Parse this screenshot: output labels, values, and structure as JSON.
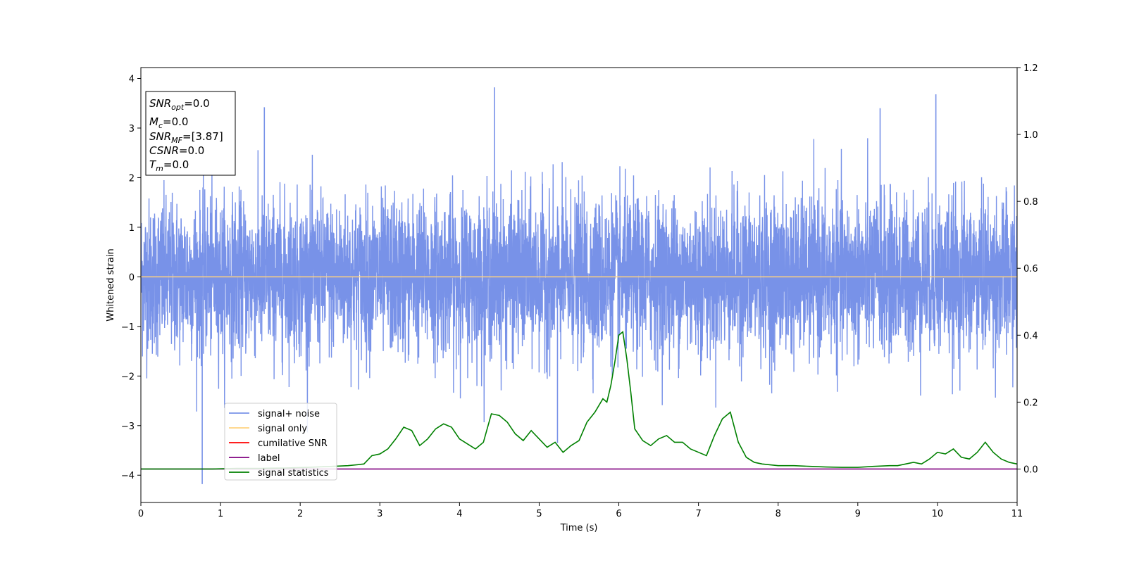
{
  "chart_data": {
    "type": "line",
    "title": "",
    "xlabel": "Time (s)",
    "ylabel": "Whitened strain",
    "xlim": [
      0,
      11
    ],
    "ylim_left": [
      -4.55,
      4.22
    ],
    "ylim_right": [
      -0.1,
      1.2
    ],
    "x_ticks": [
      0,
      1,
      2,
      3,
      4,
      5,
      6,
      7,
      8,
      9,
      10,
      11
    ],
    "y_left_ticks": [
      -4,
      -3,
      -2,
      -1,
      0,
      1,
      2,
      3,
      4
    ],
    "y_right_ticks": [
      0.0,
      0.2,
      0.4,
      0.6,
      0.8,
      1.0,
      1.2
    ],
    "grid": false,
    "legend_position": "lower-left",
    "annotation": {
      "snr_opt": {
        "base": "SNR",
        "sub": "opt",
        "value": "=0.0"
      },
      "mc": {
        "base": "M",
        "sub": "c",
        "value": "=0.0"
      },
      "snr_mf": {
        "base": "SNR",
        "sub": "MF",
        "value": "=[3.87]"
      },
      "csnr": {
        "base": "CSNR",
        "sub": "",
        "value": "=0.0"
      },
      "tm": {
        "base": "T",
        "sub": "m",
        "value": "=0.0"
      }
    },
    "series": [
      {
        "name": "signal+ noise",
        "color": "#7892e8",
        "axis": "left",
        "kind": "noise",
        "std": 0.78,
        "approx_peaks": [
          [
            0.77,
            -4.18
          ],
          [
            4.44,
            3.82
          ],
          [
            9.98,
            3.68
          ],
          [
            5.23,
            -3.35
          ],
          [
            1.55,
            3.42
          ],
          [
            9.28,
            3.4
          ]
        ]
      },
      {
        "name": "signal only",
        "color": "#ffd280",
        "axis": "left",
        "x": [
          0,
          11
        ],
        "y": [
          0,
          0
        ]
      },
      {
        "name": "cumilative SNR",
        "color": "#ff0000",
        "axis": "right",
        "x": [],
        "y": []
      },
      {
        "name": "label",
        "color": "#800080",
        "axis": "right",
        "x": [
          0,
          11
        ],
        "y": [
          0,
          0
        ]
      },
      {
        "name": "signal statistics",
        "color": "#008000",
        "axis": "right",
        "x": [
          0,
          0.3,
          0.6,
          0.9,
          1.2,
          1.5,
          1.8,
          2.1,
          2.4,
          2.6,
          2.8,
          2.9,
          3.0,
          3.1,
          3.2,
          3.3,
          3.4,
          3.5,
          3.6,
          3.7,
          3.8,
          3.9,
          4.0,
          4.1,
          4.2,
          4.3,
          4.4,
          4.5,
          4.6,
          4.7,
          4.8,
          4.9,
          5.0,
          5.1,
          5.2,
          5.3,
          5.4,
          5.5,
          5.6,
          5.7,
          5.8,
          5.85,
          5.9,
          5.95,
          6.0,
          6.05,
          6.1,
          6.15,
          6.2,
          6.3,
          6.4,
          6.5,
          6.6,
          6.7,
          6.8,
          6.9,
          7.0,
          7.1,
          7.2,
          7.3,
          7.4,
          7.5,
          7.6,
          7.7,
          7.8,
          8.0,
          8.2,
          8.4,
          8.6,
          8.8,
          9.0,
          9.2,
          9.4,
          9.5,
          9.6,
          9.7,
          9.8,
          9.9,
          10.0,
          10.1,
          10.2,
          10.3,
          10.4,
          10.5,
          10.6,
          10.7,
          10.8,
          10.9,
          11.0
        ],
        "y": [
          0.0,
          0.0,
          0.0,
          0.0,
          0.002,
          0.002,
          0.003,
          0.005,
          0.008,
          0.01,
          0.015,
          0.04,
          0.045,
          0.06,
          0.09,
          0.125,
          0.115,
          0.07,
          0.09,
          0.12,
          0.135,
          0.125,
          0.09,
          0.075,
          0.06,
          0.08,
          0.165,
          0.16,
          0.14,
          0.105,
          0.085,
          0.115,
          0.09,
          0.065,
          0.08,
          0.05,
          0.07,
          0.085,
          0.14,
          0.17,
          0.21,
          0.2,
          0.25,
          0.32,
          0.4,
          0.41,
          0.33,
          0.23,
          0.12,
          0.085,
          0.07,
          0.09,
          0.1,
          0.08,
          0.08,
          0.06,
          0.05,
          0.04,
          0.1,
          0.15,
          0.17,
          0.08,
          0.035,
          0.02,
          0.015,
          0.01,
          0.01,
          0.008,
          0.006,
          0.005,
          0.005,
          0.008,
          0.01,
          0.01,
          0.015,
          0.02,
          0.015,
          0.03,
          0.05,
          0.045,
          0.06,
          0.035,
          0.03,
          0.05,
          0.08,
          0.05,
          0.03,
          0.02,
          0.015
        ]
      }
    ]
  }
}
